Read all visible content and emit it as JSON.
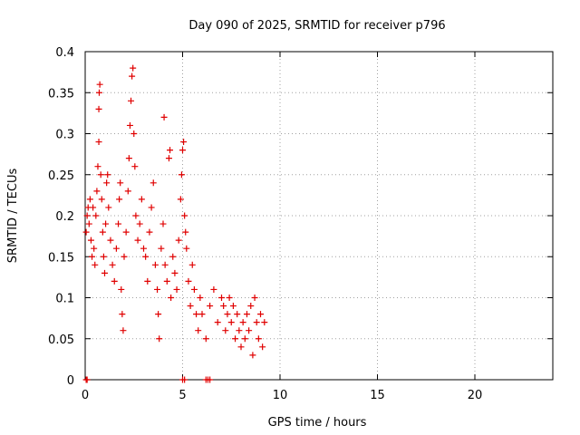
{
  "chart_data": {
    "type": "scatter",
    "title": "Day 090 of 2025, SRMTID for receiver p796",
    "xlabel": "GPS time / hours",
    "ylabel": "SRMTID / TECUs",
    "xlim": [
      0,
      24
    ],
    "ylim": [
      0,
      0.4
    ],
    "xticks": [
      0,
      5,
      10,
      15,
      20
    ],
    "yticks": [
      0,
      0.05,
      0.1,
      0.15,
      0.2,
      0.25,
      0.3,
      0.35,
      0.4
    ],
    "xtick_labels": [
      "0",
      "5",
      "10",
      "15",
      "20"
    ],
    "ytick_labels": [
      "0",
      "0.05",
      "0.1",
      "0.15",
      "0.2",
      "0.25",
      "0.3",
      "0.35",
      "0.4"
    ],
    "grid": true,
    "marker": "+",
    "color": "#e00000",
    "series": [
      {
        "name": "SRMTID",
        "points": [
          [
            0.05,
            0.18
          ],
          [
            0.1,
            0.2
          ],
          [
            0.15,
            0.21
          ],
          [
            0.2,
            0.19
          ],
          [
            0.25,
            0.22
          ],
          [
            0.3,
            0.17
          ],
          [
            0.35,
            0.15
          ],
          [
            0.4,
            0.21
          ],
          [
            0.45,
            0.16
          ],
          [
            0.5,
            0.14
          ],
          [
            0.55,
            0.2
          ],
          [
            0.6,
            0.23
          ],
          [
            0.65,
            0.26
          ],
          [
            0.7,
            0.29
          ],
          [
            0.7,
            0.33
          ],
          [
            0.72,
            0.35
          ],
          [
            0.75,
            0.36
          ],
          [
            0.8,
            0.25
          ],
          [
            0.85,
            0.22
          ],
          [
            0.9,
            0.18
          ],
          [
            0.95,
            0.15
          ],
          [
            1.0,
            0.13
          ],
          [
            1.05,
            0.19
          ],
          [
            1.1,
            0.24
          ],
          [
            1.15,
            0.25
          ],
          [
            1.2,
            0.21
          ],
          [
            1.3,
            0.17
          ],
          [
            1.4,
            0.14
          ],
          [
            1.5,
            0.12
          ],
          [
            1.6,
            0.16
          ],
          [
            1.7,
            0.19
          ],
          [
            1.75,
            0.22
          ],
          [
            1.8,
            0.24
          ],
          [
            1.85,
            0.11
          ],
          [
            1.9,
            0.08
          ],
          [
            1.95,
            0.06
          ],
          [
            2.0,
            0.15
          ],
          [
            2.1,
            0.18
          ],
          [
            2.2,
            0.23
          ],
          [
            2.25,
            0.27
          ],
          [
            2.3,
            0.31
          ],
          [
            2.35,
            0.34
          ],
          [
            2.4,
            0.37
          ],
          [
            2.45,
            0.38
          ],
          [
            2.5,
            0.3
          ],
          [
            2.55,
            0.26
          ],
          [
            2.6,
            0.2
          ],
          [
            2.7,
            0.17
          ],
          [
            2.8,
            0.19
          ],
          [
            2.9,
            0.22
          ],
          [
            3.0,
            0.16
          ],
          [
            3.1,
            0.15
          ],
          [
            3.2,
            0.12
          ],
          [
            3.3,
            0.18
          ],
          [
            3.4,
            0.21
          ],
          [
            3.5,
            0.24
          ],
          [
            3.6,
            0.14
          ],
          [
            3.7,
            0.11
          ],
          [
            3.75,
            0.08
          ],
          [
            3.8,
            0.05
          ],
          [
            3.9,
            0.16
          ],
          [
            4.0,
            0.19
          ],
          [
            4.05,
            0.32
          ],
          [
            4.1,
            0.14
          ],
          [
            4.2,
            0.12
          ],
          [
            4.3,
            0.27
          ],
          [
            4.35,
            0.28
          ],
          [
            4.4,
            0.1
          ],
          [
            4.5,
            0.15
          ],
          [
            4.6,
            0.13
          ],
          [
            4.7,
            0.11
          ],
          [
            4.8,
            0.17
          ],
          [
            4.9,
            0.22
          ],
          [
            4.95,
            0.25
          ],
          [
            5.0,
            0.28
          ],
          [
            5.05,
            0.29
          ],
          [
            5.1,
            0.2
          ],
          [
            5.15,
            0.18
          ],
          [
            5.2,
            0.16
          ],
          [
            5.3,
            0.12
          ],
          [
            5.4,
            0.09
          ],
          [
            5.5,
            0.14
          ],
          [
            5.6,
            0.11
          ],
          [
            5.7,
            0.08
          ],
          [
            5.8,
            0.06
          ],
          [
            5.9,
            0.1
          ],
          [
            6.0,
            0.08
          ],
          [
            6.2,
            0.05
          ],
          [
            6.4,
            0.09
          ],
          [
            6.6,
            0.11
          ],
          [
            6.8,
            0.07
          ],
          [
            7.0,
            0.1
          ],
          [
            7.1,
            0.09
          ],
          [
            7.2,
            0.06
          ],
          [
            7.3,
            0.08
          ],
          [
            7.4,
            0.1
          ],
          [
            7.5,
            0.07
          ],
          [
            7.6,
            0.09
          ],
          [
            7.7,
            0.05
          ],
          [
            7.8,
            0.08
          ],
          [
            7.9,
            0.06
          ],
          [
            8.0,
            0.04
          ],
          [
            8.1,
            0.07
          ],
          [
            8.2,
            0.05
          ],
          [
            8.3,
            0.08
          ],
          [
            8.4,
            0.06
          ],
          [
            8.5,
            0.09
          ],
          [
            8.6,
            0.03
          ],
          [
            8.7,
            0.1
          ],
          [
            8.8,
            0.07
          ],
          [
            8.9,
            0.05
          ],
          [
            9.0,
            0.08
          ],
          [
            9.1,
            0.04
          ],
          [
            9.2,
            0.07
          ]
        ]
      }
    ],
    "zero_markers": [
      [
        0.05,
        0
      ],
      [
        0.1,
        0
      ],
      [
        5.0,
        0
      ],
      [
        5.1,
        0
      ],
      [
        6.2,
        0
      ],
      [
        6.3,
        0
      ],
      [
        6.4,
        0
      ]
    ]
  }
}
